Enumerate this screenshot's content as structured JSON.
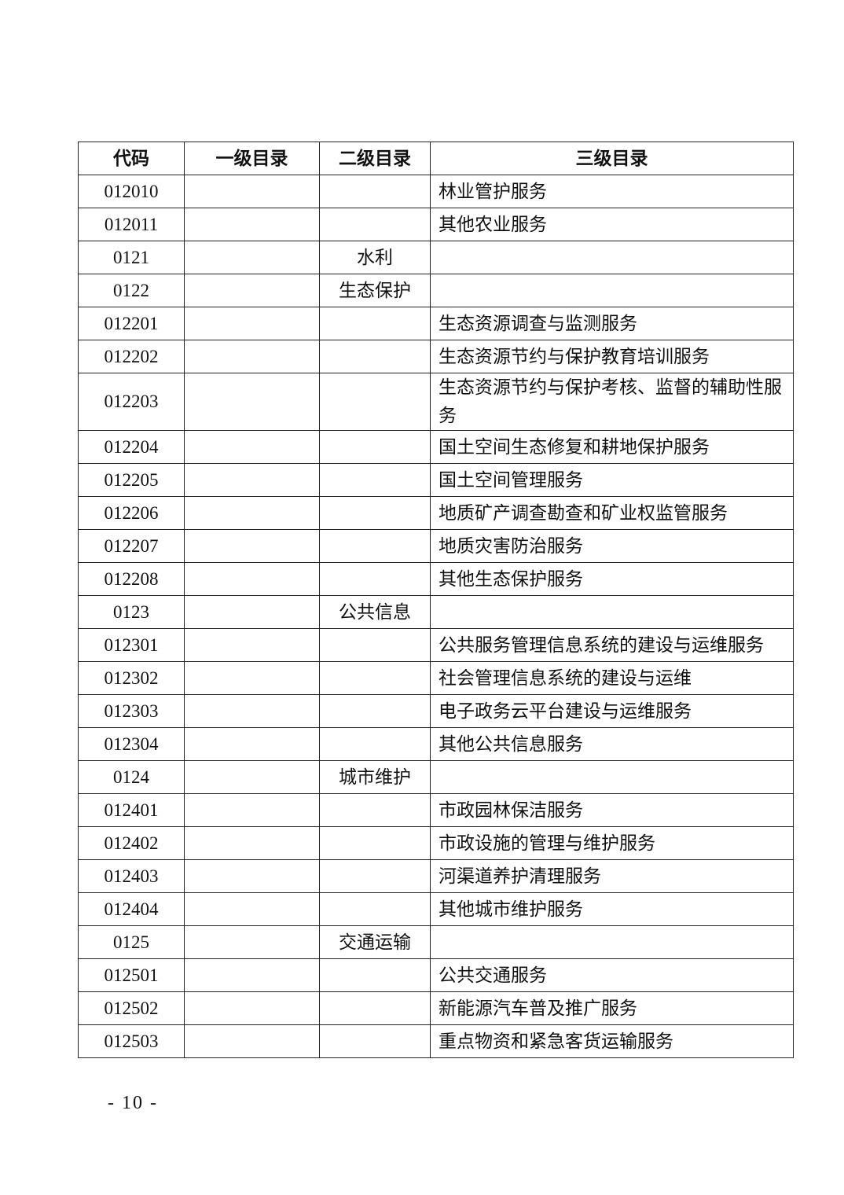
{
  "table": {
    "headers": [
      "代码",
      "一级目录",
      "二级目录",
      "三级目录"
    ],
    "rows": [
      {
        "code": "012010",
        "l1": "",
        "l2": "",
        "l3": "林业管护服务"
      },
      {
        "code": "012011",
        "l1": "",
        "l2": "",
        "l3": "其他农业服务"
      },
      {
        "code": "0121",
        "l1": "",
        "l2": "水利",
        "l3": ""
      },
      {
        "code": "0122",
        "l1": "",
        "l2": "生态保护",
        "l3": ""
      },
      {
        "code": "012201",
        "l1": "",
        "l2": "",
        "l3": "生态资源调查与监测服务"
      },
      {
        "code": "012202",
        "l1": "",
        "l2": "",
        "l3": "生态资源节约与保护教育培训服务"
      },
      {
        "code": "012203",
        "l1": "",
        "l2": "",
        "l3": "生态资源节约与保护考核、监督的辅助性服务"
      },
      {
        "code": "012204",
        "l1": "",
        "l2": "",
        "l3": "国土空间生态修复和耕地保护服务"
      },
      {
        "code": "012205",
        "l1": "",
        "l2": "",
        "l3": "国土空间管理服务"
      },
      {
        "code": "012206",
        "l1": "",
        "l2": "",
        "l3": "地质矿产调查勘查和矿业权监管服务"
      },
      {
        "code": "012207",
        "l1": "",
        "l2": "",
        "l3": "地质灾害防治服务"
      },
      {
        "code": "012208",
        "l1": "",
        "l2": "",
        "l3": "其他生态保护服务"
      },
      {
        "code": "0123",
        "l1": "",
        "l2": "公共信息",
        "l3": ""
      },
      {
        "code": "012301",
        "l1": "",
        "l2": "",
        "l3": "公共服务管理信息系统的建设与运维服务"
      },
      {
        "code": "012302",
        "l1": "",
        "l2": "",
        "l3": "社会管理信息系统的建设与运维"
      },
      {
        "code": "012303",
        "l1": "",
        "l2": "",
        "l3": "电子政务云平台建设与运维服务"
      },
      {
        "code": "012304",
        "l1": "",
        "l2": "",
        "l3": "其他公共信息服务"
      },
      {
        "code": "0124",
        "l1": "",
        "l2": "城市维护",
        "l3": ""
      },
      {
        "code": "012401",
        "l1": "",
        "l2": "",
        "l3": "市政园林保洁服务"
      },
      {
        "code": "012402",
        "l1": "",
        "l2": "",
        "l3": "市政设施的管理与维护服务"
      },
      {
        "code": "012403",
        "l1": "",
        "l2": "",
        "l3": "河渠道养护清理服务"
      },
      {
        "code": "012404",
        "l1": "",
        "l2": "",
        "l3": "其他城市维护服务"
      },
      {
        "code": "0125",
        "l1": "",
        "l2": "交通运输",
        "l3": ""
      },
      {
        "code": "012501",
        "l1": "",
        "l2": "",
        "l3": "公共交通服务"
      },
      {
        "code": "012502",
        "l1": "",
        "l2": "",
        "l3": "新能源汽车普及推广服务"
      },
      {
        "code": "012503",
        "l1": "",
        "l2": "",
        "l3": "重点物资和紧急客货运输服务"
      }
    ]
  },
  "footer": {
    "page_number": "- 10 -"
  }
}
